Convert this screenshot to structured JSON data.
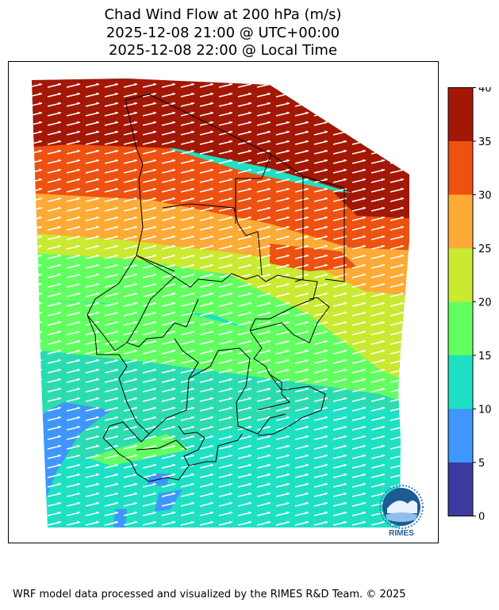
{
  "title": {
    "line1": "Chad Wind Flow at 200 hPa (m/s)",
    "line2": "2025-12-08 21:00 @ UTC+00:00",
    "line3": "2025-12-08 22:00 @ Local Time"
  },
  "colorbar": {
    "ticks": [
      "0",
      "5",
      "10",
      "15",
      "20",
      "25",
      "30",
      "35",
      "40"
    ],
    "colors": [
      "#3b3ba0",
      "#3f96fd",
      "#1ee0c3",
      "#62ff60",
      "#c9ea30",
      "#feaa36",
      "#ee5110",
      "#a31705"
    ]
  },
  "logo": {
    "text": "RIMES",
    "icon": "rimes-globe-logo"
  },
  "footer": "WRF model data processed and visualized by the RIMES R&D Team. © 2025"
}
